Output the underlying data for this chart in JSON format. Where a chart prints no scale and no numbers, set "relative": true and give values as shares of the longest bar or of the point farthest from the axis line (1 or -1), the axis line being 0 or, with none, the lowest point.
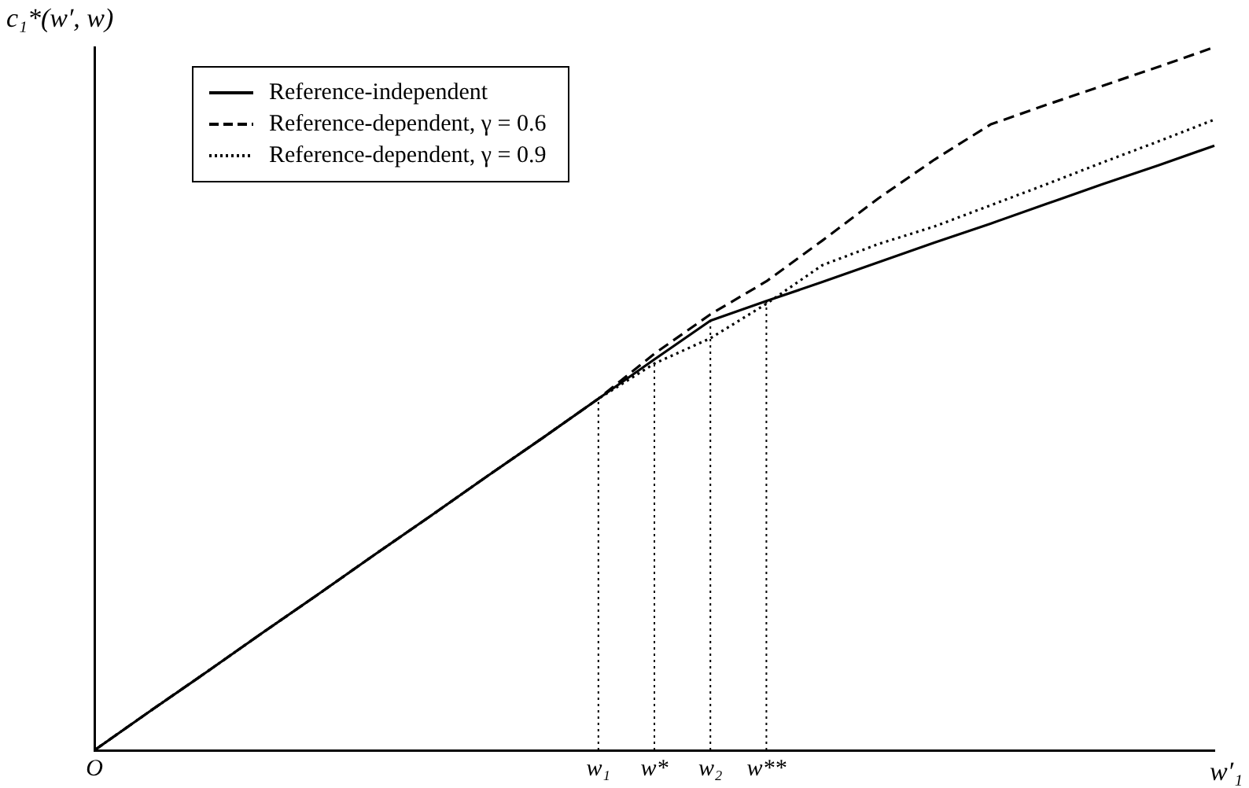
{
  "chart_data": {
    "type": "line",
    "relative": true,
    "xlabel": "w′₁",
    "ylabel": "c₁*(w′, w)",
    "legend": "top left",
    "grid": false,
    "marker": "none",
    "categories": [
      "O",
      null,
      null,
      null,
      null,
      null,
      null,
      null,
      null,
      "w₁",
      "w*",
      "w₂",
      "w**",
      null,
      null,
      null,
      null,
      null,
      null,
      null,
      null
    ],
    "series": [
      {
        "name": "Reference-independent",
        "color": "#000000",
        "line_style": "solid",
        "values": [
          0,
          0.056,
          0.111,
          0.167,
          0.222,
          0.278,
          0.333,
          0.389,
          0.444,
          0.5,
          0.556,
          0.611,
          0.639,
          0.666,
          0.694,
          0.722,
          0.749,
          0.777,
          0.805,
          0.832,
          0.86
        ]
      },
      {
        "name": "Reference-dependent, γ = 0.6",
        "color": "#000000",
        "line_style": "dashed",
        "values": [
          0,
          0.056,
          0.111,
          0.167,
          0.222,
          0.278,
          0.333,
          0.389,
          0.444,
          0.5,
          0.564,
          0.62,
          0.667,
          0.725,
          0.785,
          0.84,
          0.89,
          0.918,
          0.945,
          0.972,
          1
        ]
      },
      {
        "name": "Reference-dependent, γ = 0.9",
        "color": "#000000",
        "line_style": "dotted",
        "values": [
          0,
          0.056,
          0.111,
          0.167,
          0.222,
          0.278,
          0.333,
          0.389,
          0.444,
          0.5,
          0.55,
          0.586,
          0.635,
          0.69,
          0.72,
          0.745,
          0.775,
          0.805,
          0.836,
          0.866,
          0.897
        ]
      }
    ],
    "ref_lines": [
      {
        "axis": "x",
        "value": "w₁",
        "line_style": "dotted"
      },
      {
        "axis": "x",
        "value": "w*",
        "line_style": "dotted"
      },
      {
        "axis": "x",
        "value": "w₂",
        "line_style": "dotted"
      },
      {
        "axis": "x",
        "value": "w**",
        "line_style": "dotted"
      }
    ]
  }
}
